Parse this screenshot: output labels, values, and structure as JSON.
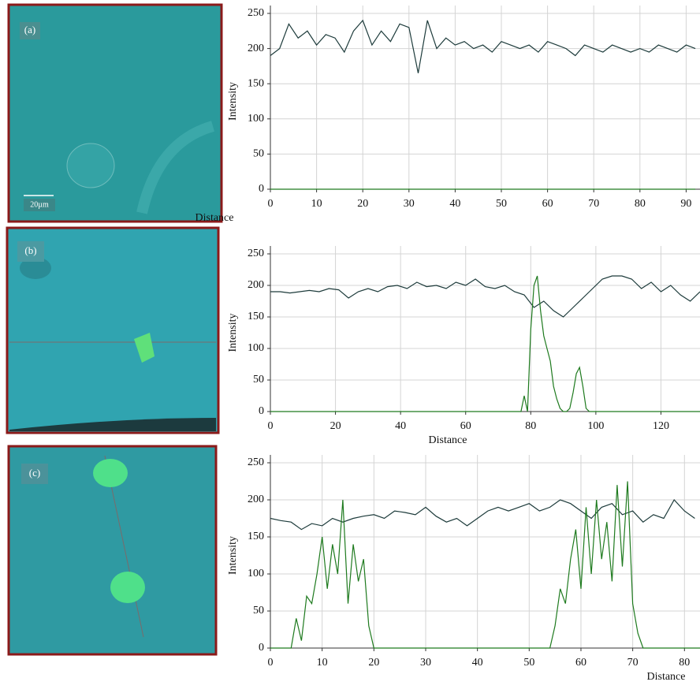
{
  "panels": [
    {
      "label": "(a)",
      "scale": "20µm"
    },
    {
      "label": "(b)"
    },
    {
      "label": "(c)"
    }
  ],
  "chart_data": [
    {
      "type": "line",
      "xlabel": "Distance",
      "ylabel": "Intensity",
      "xlim": [
        0,
        93
      ],
      "ylim": [
        0,
        250
      ],
      "xticks": [
        0,
        10,
        20,
        30,
        40,
        50,
        60,
        70,
        80,
        90
      ],
      "yticks": [
        0,
        50,
        100,
        150,
        200,
        250
      ],
      "grid": true,
      "series": [
        {
          "color": "#1d3b3b",
          "x": [
            0,
            2,
            4,
            6,
            8,
            10,
            12,
            14,
            16,
            18,
            20,
            22,
            24,
            26,
            28,
            30,
            32,
            34,
            36,
            38,
            40,
            42,
            44,
            46,
            48,
            50,
            52,
            54,
            56,
            58,
            60,
            62,
            64,
            66,
            68,
            70,
            72,
            74,
            76,
            78,
            80,
            82,
            84,
            86,
            88,
            90,
            92
          ],
          "values": [
            190,
            200,
            235,
            215,
            225,
            205,
            220,
            215,
            195,
            225,
            240,
            205,
            225,
            210,
            235,
            230,
            165,
            240,
            200,
            215,
            205,
            210,
            200,
            205,
            195,
            210,
            205,
            200,
            205,
            195,
            210,
            205,
            200,
            190,
            205,
            200,
            195,
            205,
            200,
            195,
            200,
            195,
            205,
            200,
            195,
            205,
            200
          ]
        },
        {
          "color": "#1e7a1e",
          "x": [
            0,
            92
          ],
          "values": [
            0,
            0
          ]
        }
      ]
    },
    {
      "type": "line",
      "xlabel": "Distance",
      "ylabel": "Intensity",
      "xlim": [
        0,
        132
      ],
      "ylim": [
        0,
        250
      ],
      "xticks": [
        0,
        20,
        40,
        60,
        80,
        100,
        120
      ],
      "yticks": [
        0,
        50,
        100,
        150,
        200,
        250
      ],
      "grid": true,
      "series": [
        {
          "color": "#1d3b3b",
          "x": [
            0,
            3,
            6,
            9,
            12,
            15,
            18,
            21,
            24,
            27,
            30,
            33,
            36,
            39,
            42,
            45,
            48,
            51,
            54,
            57,
            60,
            63,
            66,
            69,
            72,
            75,
            78,
            81,
            84,
            87,
            90,
            93,
            96,
            99,
            102,
            105,
            108,
            111,
            114,
            117,
            120,
            123,
            126,
            129,
            132
          ],
          "values": [
            190,
            190,
            188,
            190,
            192,
            190,
            195,
            193,
            180,
            190,
            195,
            190,
            198,
            200,
            195,
            205,
            198,
            200,
            195,
            205,
            200,
            210,
            198,
            195,
            200,
            190,
            185,
            165,
            175,
            160,
            150,
            165,
            180,
            195,
            210,
            215,
            215,
            210,
            195,
            205,
            190,
            200,
            185,
            175,
            190
          ]
        },
        {
          "color": "#1e7a1e",
          "x": [
            0,
            77,
            78,
            79,
            80,
            81,
            82,
            83,
            84,
            85,
            86,
            87,
            88,
            89,
            90,
            91,
            92,
            93,
            94,
            95,
            96,
            97,
            98,
            132
          ],
          "values": [
            0,
            0,
            25,
            0,
            130,
            200,
            215,
            160,
            120,
            100,
            80,
            40,
            20,
            5,
            0,
            0,
            5,
            30,
            60,
            70,
            40,
            5,
            0,
            0
          ]
        }
      ]
    },
    {
      "type": "line",
      "xlabel": "Distance",
      "ylabel": "Intensity",
      "xlim": [
        0,
        83
      ],
      "ylim": [
        0,
        250
      ],
      "xticks": [
        0,
        10,
        20,
        30,
        40,
        50,
        60,
        70,
        80
      ],
      "yticks": [
        0,
        50,
        100,
        150,
        200,
        250
      ],
      "grid": true,
      "series": [
        {
          "color": "#1d3b3b",
          "x": [
            0,
            2,
            4,
            6,
            8,
            10,
            12,
            14,
            16,
            18,
            20,
            22,
            24,
            26,
            28,
            30,
            32,
            34,
            36,
            38,
            40,
            42,
            44,
            46,
            48,
            50,
            52,
            54,
            56,
            58,
            60,
            62,
            64,
            66,
            68,
            70,
            72,
            74,
            76,
            78,
            80,
            82
          ],
          "values": [
            175,
            172,
            170,
            160,
            168,
            165,
            175,
            170,
            175,
            178,
            180,
            175,
            185,
            183,
            180,
            190,
            178,
            170,
            175,
            165,
            175,
            185,
            190,
            185,
            190,
            195,
            185,
            190,
            200,
            195,
            185,
            175,
            190,
            195,
            180,
            185,
            170,
            180,
            175,
            200,
            185,
            175
          ]
        },
        {
          "color": "#1e7a1e",
          "x": [
            0,
            4,
            5,
            6,
            7,
            8,
            9,
            10,
            11,
            12,
            13,
            14,
            15,
            16,
            17,
            18,
            19,
            20,
            21,
            53,
            54,
            55,
            56,
            57,
            58,
            59,
            60,
            61,
            62,
            63,
            64,
            65,
            66,
            67,
            68,
            69,
            70,
            71,
            72,
            73,
            83
          ],
          "values": [
            0,
            0,
            40,
            10,
            70,
            60,
            100,
            150,
            80,
            140,
            100,
            200,
            60,
            140,
            90,
            120,
            30,
            0,
            0,
            0,
            0,
            30,
            80,
            60,
            120,
            160,
            80,
            190,
            100,
            200,
            120,
            170,
            90,
            220,
            110,
            225,
            60,
            20,
            0,
            0,
            0
          ]
        }
      ]
    }
  ]
}
